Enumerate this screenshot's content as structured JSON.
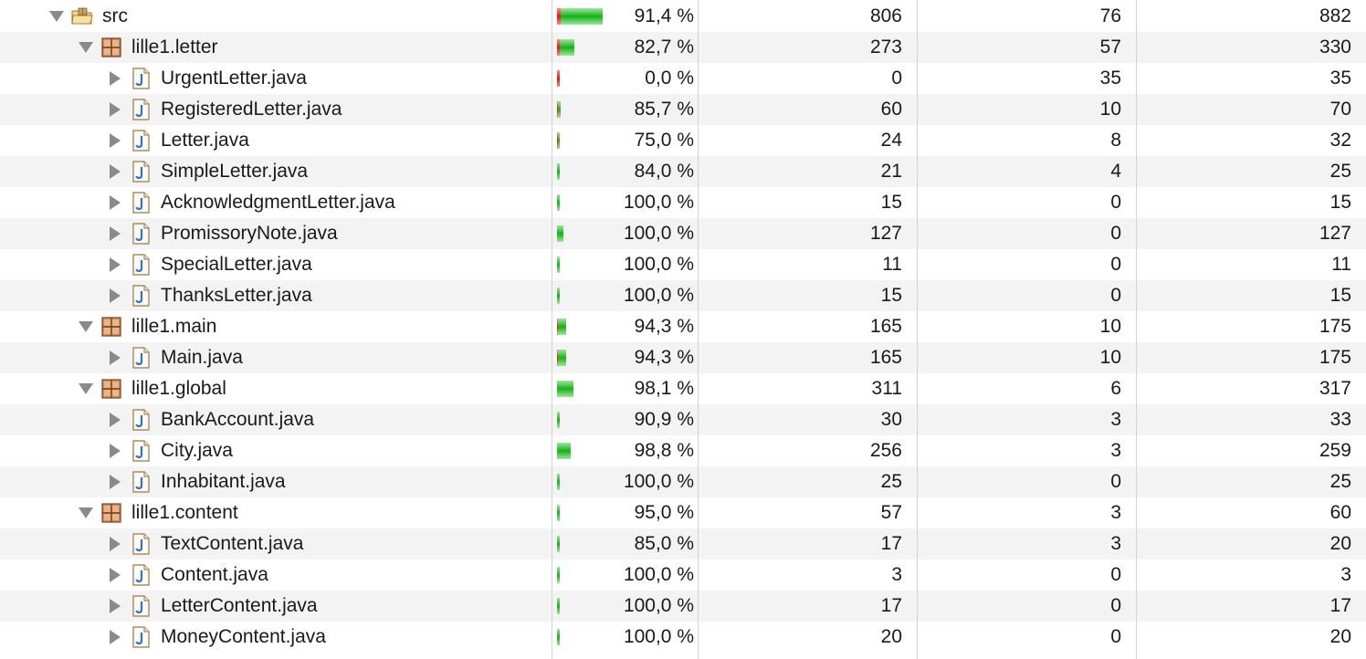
{
  "colors": {
    "covered": "#17b217",
    "missed": "#e11818",
    "row_alt": "#f3f3f3",
    "grid": "#d2d2d2"
  },
  "rows": [
    {
      "name": "src",
      "type": "folder",
      "level": 0,
      "expanded": true,
      "coverage": "91,4 %",
      "covered_fraction": 0.914,
      "bar_scale": 1.0,
      "covered": "806",
      "missed": "76",
      "total": "882"
    },
    {
      "name": "lille1.letter",
      "type": "package",
      "level": 1,
      "expanded": true,
      "coverage": "82,7 %",
      "covered_fraction": 0.827,
      "bar_scale": 0.374,
      "covered": "273",
      "missed": "57",
      "total": "330"
    },
    {
      "name": "UrgentLetter.java",
      "type": "java",
      "level": 2,
      "expanded": false,
      "coverage": "0,0 %",
      "covered_fraction": 0.0,
      "bar_scale": 0.04,
      "covered": "0",
      "missed": "35",
      "total": "35"
    },
    {
      "name": "RegisteredLetter.java",
      "type": "java",
      "level": 2,
      "expanded": false,
      "coverage": "85,7 %",
      "covered_fraction": 0.857,
      "bar_scale": 0.079,
      "covered": "60",
      "missed": "10",
      "total": "70"
    },
    {
      "name": "Letter.java",
      "type": "java",
      "level": 2,
      "expanded": false,
      "coverage": "75,0 %",
      "covered_fraction": 0.75,
      "bar_scale": 0.036,
      "covered": "24",
      "missed": "8",
      "total": "32"
    },
    {
      "name": "SimpleLetter.java",
      "type": "java",
      "level": 2,
      "expanded": false,
      "coverage": "84,0 %",
      "covered_fraction": 0.84,
      "bar_scale": 0.028,
      "covered": "21",
      "missed": "4",
      "total": "25"
    },
    {
      "name": "AcknowledgmentLetter.java",
      "type": "java",
      "level": 2,
      "expanded": false,
      "coverage": "100,0 %",
      "covered_fraction": 1.0,
      "bar_scale": 0.017,
      "covered": "15",
      "missed": "0",
      "total": "15"
    },
    {
      "name": "PromissoryNote.java",
      "type": "java",
      "level": 2,
      "expanded": false,
      "coverage": "100,0 %",
      "covered_fraction": 1.0,
      "bar_scale": 0.144,
      "covered": "127",
      "missed": "0",
      "total": "127"
    },
    {
      "name": "SpecialLetter.java",
      "type": "java",
      "level": 2,
      "expanded": false,
      "coverage": "100,0 %",
      "covered_fraction": 1.0,
      "bar_scale": 0.012,
      "covered": "11",
      "missed": "0",
      "total": "11"
    },
    {
      "name": "ThanksLetter.java",
      "type": "java",
      "level": 2,
      "expanded": false,
      "coverage": "100,0 %",
      "covered_fraction": 1.0,
      "bar_scale": 0.017,
      "covered": "15",
      "missed": "0",
      "total": "15"
    },
    {
      "name": "lille1.main",
      "type": "package",
      "level": 1,
      "expanded": true,
      "coverage": "94,3 %",
      "covered_fraction": 0.943,
      "bar_scale": 0.198,
      "covered": "165",
      "missed": "10",
      "total": "175"
    },
    {
      "name": "Main.java",
      "type": "java",
      "level": 2,
      "expanded": false,
      "coverage": "94,3 %",
      "covered_fraction": 0.943,
      "bar_scale": 0.198,
      "covered": "165",
      "missed": "10",
      "total": "175"
    },
    {
      "name": "lille1.global",
      "type": "package",
      "level": 1,
      "expanded": true,
      "coverage": "98,1 %",
      "covered_fraction": 0.981,
      "bar_scale": 0.359,
      "covered": "311",
      "missed": "6",
      "total": "317"
    },
    {
      "name": "BankAccount.java",
      "type": "java",
      "level": 2,
      "expanded": false,
      "coverage": "90,9 %",
      "covered_fraction": 0.909,
      "bar_scale": 0.037,
      "covered": "30",
      "missed": "3",
      "total": "33"
    },
    {
      "name": "City.java",
      "type": "java",
      "level": 2,
      "expanded": false,
      "coverage": "98,8 %",
      "covered_fraction": 0.988,
      "bar_scale": 0.294,
      "covered": "256",
      "missed": "3",
      "total": "259"
    },
    {
      "name": "Inhabitant.java",
      "type": "java",
      "level": 2,
      "expanded": false,
      "coverage": "100,0 %",
      "covered_fraction": 1.0,
      "bar_scale": 0.028,
      "covered": "25",
      "missed": "0",
      "total": "25"
    },
    {
      "name": "lille1.content",
      "type": "package",
      "level": 1,
      "expanded": true,
      "coverage": "95,0 %",
      "covered_fraction": 0.95,
      "bar_scale": 0.068,
      "covered": "57",
      "missed": "3",
      "total": "60"
    },
    {
      "name": "TextContent.java",
      "type": "java",
      "level": 2,
      "expanded": false,
      "coverage": "85,0 %",
      "covered_fraction": 0.85,
      "bar_scale": 0.023,
      "covered": "17",
      "missed": "3",
      "total": "20"
    },
    {
      "name": "Content.java",
      "type": "java",
      "level": 2,
      "expanded": false,
      "coverage": "100,0 %",
      "covered_fraction": 1.0,
      "bar_scale": 0.003,
      "covered": "3",
      "missed": "0",
      "total": "3"
    },
    {
      "name": "LetterContent.java",
      "type": "java",
      "level": 2,
      "expanded": false,
      "coverage": "100,0 %",
      "covered_fraction": 1.0,
      "bar_scale": 0.019,
      "covered": "17",
      "missed": "0",
      "total": "17"
    },
    {
      "name": "MoneyContent.java",
      "type": "java",
      "level": 2,
      "expanded": false,
      "coverage": "100,0 %",
      "covered_fraction": 1.0,
      "bar_scale": 0.023,
      "covered": "20",
      "missed": "0",
      "total": "20"
    }
  ]
}
